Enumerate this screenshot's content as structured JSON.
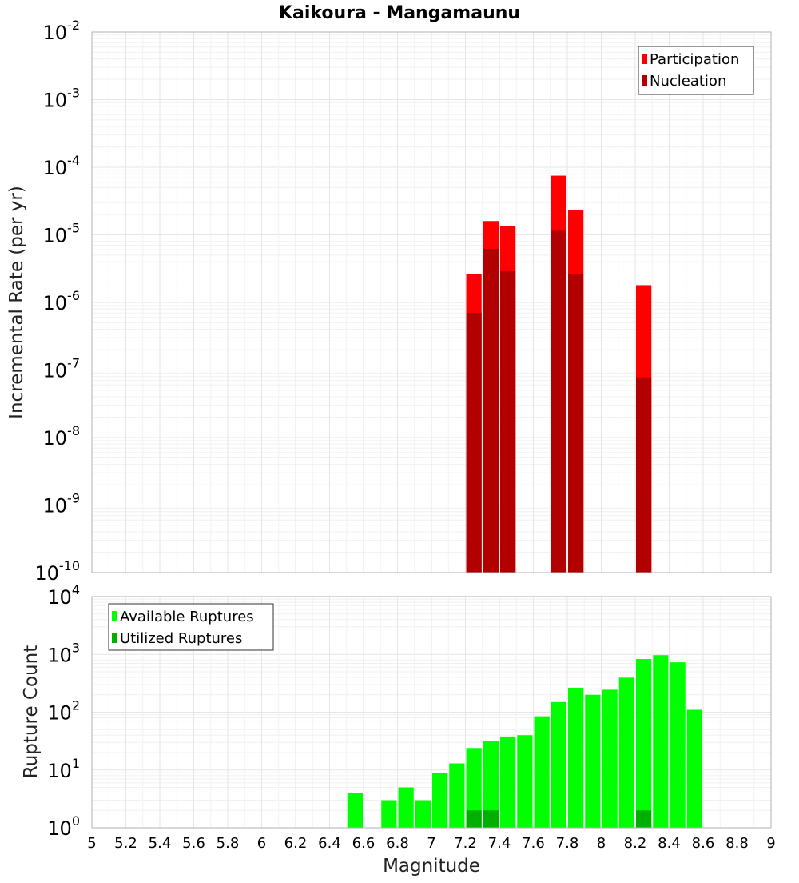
{
  "title": "Kaikoura - Mangamaunu",
  "colors": {
    "participation": "#ff0000",
    "nucleation": "#b20000",
    "available": "#00ff00",
    "utilized": "#00b000",
    "grid": "#e6e6e6",
    "frame": "#b0b0b0"
  },
  "chart_data": [
    {
      "type": "bar",
      "scale": "log",
      "ylabel": "Incremental Rate (per yr)",
      "ylim_exponents": [
        -10,
        -2
      ],
      "ytick_base": "10",
      "ytick_exponents": [
        "-10",
        "-9",
        "-8",
        "-7",
        "-6",
        "-5",
        "-4",
        "-3",
        "-2"
      ],
      "legend": {
        "position": "top-right",
        "entries": [
          "Participation",
          "Nucleation"
        ]
      },
      "series": [
        {
          "name": "Participation",
          "x": [
            7.25,
            7.35,
            7.45,
            7.75,
            7.85,
            8.25
          ],
          "values": [
            2.6e-06,
            1.6e-05,
            1.35e-05,
            7.5e-05,
            2.3e-05,
            1.8e-06
          ]
        },
        {
          "name": "Nucleation",
          "x": [
            7.25,
            7.35,
            7.45,
            7.75,
            7.85,
            8.25
          ],
          "values": [
            7e-07,
            6.2e-06,
            2.9e-06,
            1.15e-05,
            2.6e-06,
            7.8e-08
          ]
        }
      ]
    },
    {
      "type": "bar",
      "scale": "log",
      "xlabel": "Magnitude",
      "ylabel": "Rupture Count",
      "ylim_exponents": [
        0,
        4
      ],
      "ytick_base": "10",
      "ytick_exponents": [
        "0",
        "1",
        "2",
        "3",
        "4"
      ],
      "legend": {
        "position": "top-left",
        "entries": [
          "Available Ruptures",
          "Utilized Ruptures"
        ]
      },
      "series": [
        {
          "name": "Available Ruptures",
          "x": [
            6.55,
            6.75,
            6.85,
            6.95,
            7.05,
            7.15,
            7.25,
            7.35,
            7.45,
            7.55,
            7.65,
            7.75,
            7.85,
            7.95,
            8.05,
            8.15,
            8.25,
            8.35,
            8.45,
            8.55
          ],
          "values": [
            4,
            3,
            5,
            3,
            9,
            13,
            24,
            32,
            38,
            40,
            85,
            150,
            265,
            200,
            245,
            395,
            830,
            970,
            730,
            110
          ]
        },
        {
          "name": "Utilized Ruptures",
          "x": [
            7.25,
            7.35,
            7.45,
            7.75,
            7.85,
            8.25
          ],
          "values": [
            2,
            2,
            1,
            1,
            1,
            2
          ]
        }
      ]
    }
  ],
  "x_axis": {
    "xlim": [
      5,
      9
    ],
    "tick_labels": [
      "5",
      "5.2",
      "5.4",
      "5.6",
      "5.8",
      "6",
      "6.2",
      "6.4",
      "6.6",
      "6.8",
      "7",
      "7.2",
      "7.4",
      "7.6",
      "7.8",
      "8",
      "8.2",
      "8.4",
      "8.6",
      "8.8",
      "9"
    ],
    "bin_width": 0.1
  }
}
